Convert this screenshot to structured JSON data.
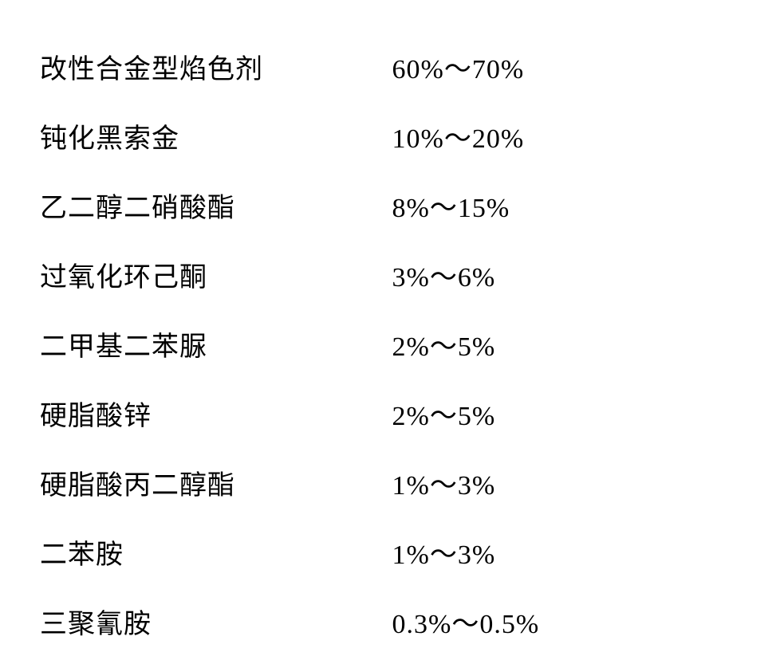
{
  "composition": {
    "rows": [
      {
        "name": "改性合金型焰色剂",
        "value": "60%～70%"
      },
      {
        "name": "钝化黑索金",
        "value": "10%～20%"
      },
      {
        "name": "乙二醇二硝酸酯",
        "value": "8%～15%"
      },
      {
        "name": "过氧化环己酮",
        "value": "3%～6%"
      },
      {
        "name": "二甲基二苯脲",
        "value": "2%～5%"
      },
      {
        "name": "硬脂酸锌",
        "value": "2%～5%"
      },
      {
        "name": "硬脂酸丙二醇酯",
        "value": "1%～3%"
      },
      {
        "name": "二苯胺",
        "value": "1%～3%"
      },
      {
        "name": "三聚氰胺",
        "value": "0.3%～0.5%"
      }
    ],
    "text_color": "#000000",
    "background_color": "#ffffff",
    "font_size": 34,
    "row_padding": 19
  }
}
